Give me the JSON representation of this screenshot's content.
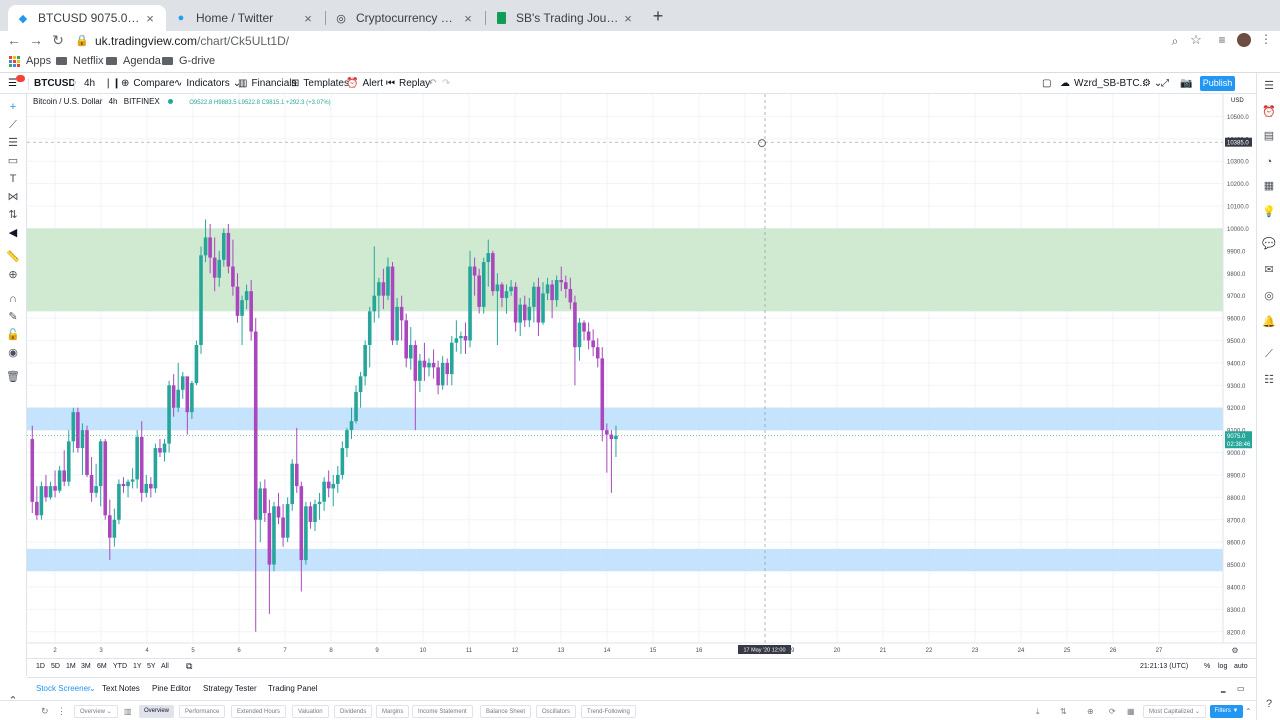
{
  "browser": {
    "tabs": [
      {
        "title": "BTCUSD 9075.0 ▼ −4.49% W...",
        "icon": "tradingview-icon",
        "active": true
      },
      {
        "title": "Home / Twitter",
        "icon": "twitter-icon",
        "active": false
      },
      {
        "title": "Cryptocurrency Market Capitali...",
        "icon": "coinmarketcap-icon",
        "active": false
      },
      {
        "title": "SB's Trading Journal - Google ...",
        "icon": "google-sheets-icon",
        "active": false
      }
    ],
    "url_host": "uk.tradingview.com",
    "url_path": "/chart/Ck5ULt1D/",
    "bookmarks": [
      "Apps",
      "Netflix",
      "Agenda",
      "G-drive"
    ]
  },
  "toolbar": {
    "symbol": "BTCUSD",
    "interval": "4h",
    "compare": "Compare",
    "indicators": "Indicators",
    "financials": "Financials",
    "templates": "Templates",
    "alert": "Alert",
    "replay": "Replay",
    "layout_name": "Wzrd_SB-BTC...",
    "publish": "Publish"
  },
  "legend": {
    "title": "Bitcoin / U.S. Dollar",
    "interval": "4h",
    "exchange": "BITFINEX",
    "ohlc": "O9522.8 H9883.5 L9522.8 C9815.1 +292.3 (+3.07%)"
  },
  "chart_data": {
    "type": "candlestick",
    "currency": "USD",
    "ylim": [
      8150,
      10600
    ],
    "y_ticks": [
      10500,
      10400,
      10300,
      10200,
      10100,
      10000,
      9900,
      9800,
      9700,
      9600,
      9500,
      9400,
      9300,
      9200,
      9100,
      9000,
      8900,
      8800,
      8700,
      8600,
      8500,
      8400,
      8300,
      8200
    ],
    "x_ticks": [
      "2",
      "3",
      "4",
      "5",
      "6",
      "7",
      "8",
      "9",
      "10",
      "11",
      "12",
      "13",
      "14",
      "15",
      "16",
      "17 May '20  12:00",
      "19",
      "20",
      "21",
      "22",
      "23",
      "24",
      "25",
      "26",
      "27"
    ],
    "crosshair_price": "10385.0",
    "last_price": "9075.0",
    "countdown": "02:38:46",
    "zones": [
      {
        "type": "resistance",
        "from": 9630,
        "to": 10000,
        "color": "#c8e6c9"
      },
      {
        "type": "support",
        "from": 9100,
        "to": 9200,
        "color": "#bbdefb"
      },
      {
        "type": "support",
        "from": 8470,
        "to": 8570,
        "color": "#bbdefb"
      }
    ],
    "candles": [
      [
        9060,
        9120,
        8730,
        8780
      ],
      [
        8780,
        8850,
        8700,
        8720
      ],
      [
        8720,
        8870,
        8700,
        8850
      ],
      [
        8850,
        8900,
        8780,
        8800
      ],
      [
        8800,
        8870,
        8790,
        8850
      ],
      [
        8850,
        8920,
        8800,
        8830
      ],
      [
        8830,
        8940,
        8820,
        8920
      ],
      [
        8920,
        9010,
        8850,
        8870
      ],
      [
        8870,
        9100,
        8850,
        9050
      ],
      [
        9050,
        9200,
        9000,
        9180
      ],
      [
        9180,
        9200,
        9000,
        9020
      ],
      [
        9020,
        9130,
        8900,
        9100
      ],
      [
        9100,
        9120,
        8890,
        8900
      ],
      [
        8900,
        8980,
        8780,
        8820
      ],
      [
        8820,
        8950,
        8800,
        8850
      ],
      [
        8850,
        9060,
        8760,
        9050
      ],
      [
        9050,
        9060,
        8700,
        8720
      ],
      [
        8720,
        8790,
        8520,
        8620
      ],
      [
        8620,
        8750,
        8580,
        8700
      ],
      [
        8700,
        8880,
        8680,
        8860
      ],
      [
        8860,
        8890,
        8820,
        8850
      ],
      [
        8850,
        8880,
        8800,
        8870
      ],
      [
        8870,
        8930,
        8840,
        8880
      ],
      [
        8880,
        9100,
        8840,
        9070
      ],
      [
        9070,
        9140,
        8780,
        8820
      ],
      [
        8820,
        8900,
        8800,
        8860
      ],
      [
        8860,
        8890,
        8800,
        8840
      ],
      [
        8840,
        9040,
        8820,
        9020
      ],
      [
        9020,
        9060,
        8980,
        9000
      ],
      [
        9000,
        9060,
        8960,
        9040
      ],
      [
        9040,
        9320,
        9000,
        9300
      ],
      [
        9300,
        9350,
        9160,
        9200
      ],
      [
        9200,
        9400,
        9180,
        9280
      ],
      [
        9280,
        9360,
        9240,
        9340
      ],
      [
        9340,
        9320,
        9080,
        9180
      ],
      [
        9180,
        9320,
        9150,
        9310
      ],
      [
        9310,
        9500,
        9300,
        9480
      ],
      [
        9480,
        9920,
        9440,
        9880
      ],
      [
        9880,
        10040,
        9850,
        9960
      ],
      [
        9960,
        10020,
        9800,
        9870
      ],
      [
        9870,
        9960,
        9720,
        9780
      ],
      [
        9780,
        9900,
        9740,
        9860
      ],
      [
        9860,
        10000,
        9830,
        9980
      ],
      [
        9980,
        10020,
        9800,
        9830
      ],
      [
        9830,
        9950,
        9700,
        9740
      ],
      [
        9740,
        9800,
        9580,
        9610
      ],
      [
        9610,
        9700,
        9480,
        9680
      ],
      [
        9680,
        9750,
        9640,
        9720
      ],
      [
        9720,
        9770,
        9500,
        9540
      ],
      [
        9540,
        9600,
        8200,
        8700
      ],
      [
        8700,
        8870,
        8600,
        8840
      ],
      [
        8840,
        8880,
        8690,
        8730
      ],
      [
        8730,
        8790,
        8280,
        8500
      ],
      [
        8500,
        8780,
        8470,
        8760
      ],
      [
        8760,
        8820,
        8680,
        8710
      ],
      [
        8710,
        8770,
        8580,
        8620
      ],
      [
        8620,
        8800,
        8600,
        8770
      ],
      [
        8770,
        8970,
        8740,
        8950
      ],
      [
        8950,
        9110,
        8820,
        8850
      ],
      [
        8850,
        8870,
        8380,
        8520
      ],
      [
        8520,
        8780,
        8500,
        8760
      ],
      [
        8760,
        8780,
        8660,
        8690
      ],
      [
        8690,
        8790,
        8650,
        8770
      ],
      [
        8770,
        8820,
        8700,
        8780
      ],
      [
        8780,
        8890,
        8740,
        8870
      ],
      [
        8870,
        8920,
        8800,
        8840
      ],
      [
        8840,
        8900,
        8760,
        8860
      ],
      [
        8860,
        8940,
        8820,
        8900
      ],
      [
        8900,
        9050,
        8880,
        9020
      ],
      [
        9020,
        9110,
        8980,
        9100
      ],
      [
        9100,
        9200,
        9060,
        9140
      ],
      [
        9140,
        9300,
        9130,
        9270
      ],
      [
        9270,
        9360,
        9200,
        9340
      ],
      [
        9340,
        9500,
        9300,
        9480
      ],
      [
        9480,
        9650,
        9380,
        9630
      ],
      [
        9630,
        9920,
        9580,
        9700
      ],
      [
        9700,
        9780,
        9600,
        9760
      ],
      [
        9760,
        9820,
        9640,
        9700
      ],
      [
        9700,
        9870,
        9680,
        9830
      ],
      [
        9830,
        9850,
        9480,
        9500
      ],
      [
        9500,
        9690,
        9480,
        9650
      ],
      [
        9650,
        9700,
        9500,
        9590
      ],
      [
        9590,
        9620,
        9380,
        9420
      ],
      [
        9420,
        9560,
        9370,
        9480
      ],
      [
        9480,
        9500,
        9100,
        9320
      ],
      [
        9320,
        9440,
        9270,
        9410
      ],
      [
        9410,
        9490,
        9320,
        9380
      ],
      [
        9380,
        9420,
        9340,
        9400
      ],
      [
        9400,
        9460,
        9330,
        9380
      ],
      [
        9380,
        9410,
        9260,
        9300
      ],
      [
        9300,
        9430,
        9280,
        9400
      ],
      [
        9400,
        9420,
        9300,
        9350
      ],
      [
        9350,
        9520,
        9300,
        9490
      ],
      [
        9490,
        9590,
        9450,
        9510
      ],
      [
        9510,
        9540,
        9440,
        9520
      ],
      [
        9520,
        9580,
        9440,
        9500
      ],
      [
        9500,
        9900,
        9470,
        9830
      ],
      [
        9830,
        9870,
        9700,
        9790
      ],
      [
        9790,
        9820,
        9620,
        9650
      ],
      [
        9650,
        9870,
        9620,
        9850
      ],
      [
        9850,
        9950,
        9740,
        9890
      ],
      [
        9890,
        9900,
        9700,
        9720
      ],
      [
        9720,
        9800,
        9480,
        9750
      ],
      [
        9750,
        9760,
        9650,
        9690
      ],
      [
        9690,
        9750,
        9620,
        9720
      ],
      [
        9720,
        9770,
        9700,
        9740
      ],
      [
        9740,
        9760,
        9540,
        9580
      ],
      [
        9580,
        9690,
        9520,
        9660
      ],
      [
        9660,
        9700,
        9560,
        9590
      ],
      [
        9590,
        9690,
        9560,
        9650
      ],
      [
        9650,
        9760,
        9580,
        9740
      ],
      [
        9740,
        9780,
        9520,
        9580
      ],
      [
        9580,
        9760,
        9570,
        9710
      ],
      [
        9710,
        9780,
        9680,
        9750
      ],
      [
        9750,
        9770,
        9600,
        9680
      ],
      [
        9680,
        9790,
        9650,
        9770
      ],
      [
        9770,
        9830,
        9720,
        9760
      ],
      [
        9760,
        9790,
        9690,
        9730
      ],
      [
        9730,
        9780,
        9640,
        9670
      ],
      [
        9670,
        9700,
        9300,
        9470
      ],
      [
        9470,
        9600,
        9410,
        9580
      ],
      [
        9580,
        9590,
        9500,
        9540
      ],
      [
        9540,
        9580,
        9460,
        9500
      ],
      [
        9500,
        9550,
        9430,
        9470
      ],
      [
        9470,
        9510,
        9380,
        9420
      ],
      [
        9420,
        9470,
        9050,
        9100
      ],
      [
        9100,
        9130,
        8910,
        9080
      ],
      [
        9080,
        9100,
        8820,
        9060
      ],
      [
        9060,
        9120,
        8980,
        9075
      ]
    ]
  },
  "range_bar": {
    "ranges": [
      "1D",
      "5D",
      "1M",
      "3M",
      "6M",
      "YTD",
      "1Y",
      "5Y",
      "All"
    ],
    "time": "21:21:13 (UTC)",
    "pct": "%",
    "log": "log",
    "auto": "auto"
  },
  "bottom_panel": {
    "tabs": [
      "Stock Screener",
      "Text Notes",
      "Pine Editor",
      "Strategy Tester",
      "Trading Panel"
    ]
  },
  "screener": {
    "view": "Overview",
    "filters_tabs": [
      "Overview",
      "Performance",
      "Extended Hours",
      "Valuation",
      "Dividends",
      "Margins",
      "Income Statement",
      "Balance Sheet",
      "Oscillators",
      "Trend-Following"
    ],
    "sort": "Most Capitalized",
    "filters_button": "Filters"
  }
}
